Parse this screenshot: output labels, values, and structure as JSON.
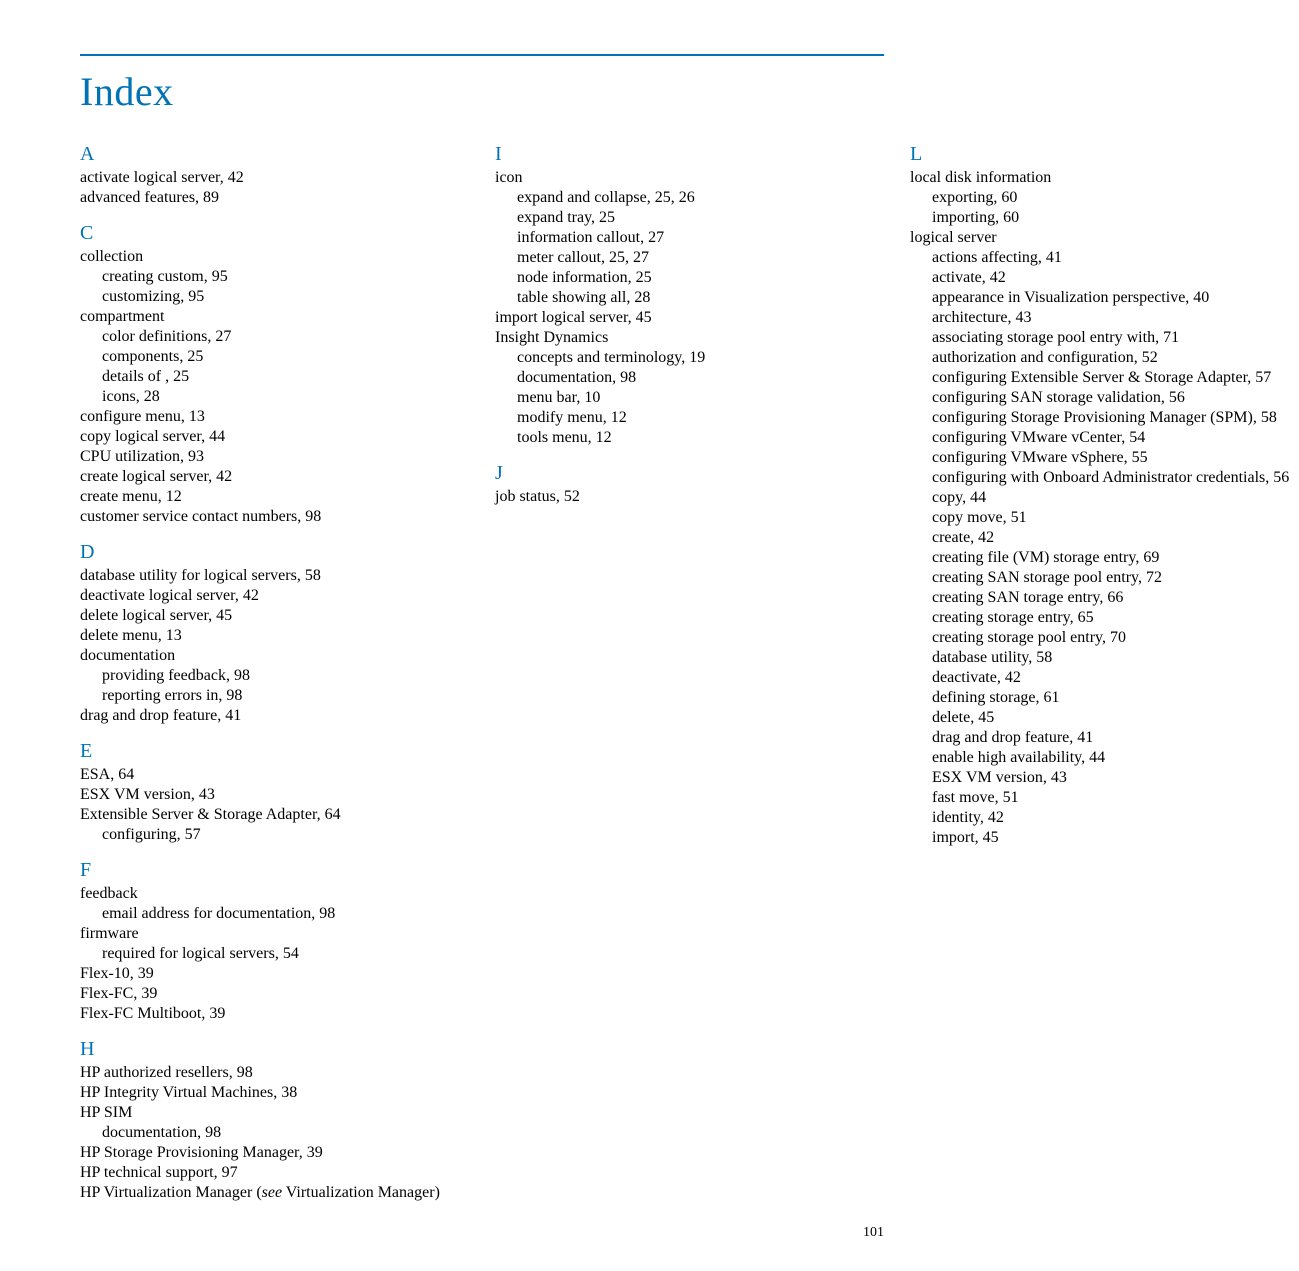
{
  "title": "Index",
  "pageNumber": "101",
  "sections": [
    {
      "letter": "A",
      "entries": [
        {
          "text": "activate logical server, 42",
          "sub": false
        },
        {
          "text": "advanced features, 89",
          "sub": false
        }
      ]
    },
    {
      "letter": "C",
      "entries": [
        {
          "text": "collection",
          "sub": false
        },
        {
          "text": "creating custom, 95",
          "sub": true
        },
        {
          "text": "customizing, 95",
          "sub": true
        },
        {
          "text": "compartment",
          "sub": false
        },
        {
          "text": "color definitions, 27",
          "sub": true
        },
        {
          "text": "components, 25",
          "sub": true
        },
        {
          "text": "details of , 25",
          "sub": true
        },
        {
          "text": "icons, 28",
          "sub": true
        },
        {
          "text": "configure menu, 13",
          "sub": false
        },
        {
          "text": "copy logical server, 44",
          "sub": false
        },
        {
          "text": "CPU utilization, 93",
          "sub": false
        },
        {
          "text": "create logical server, 42",
          "sub": false
        },
        {
          "text": "create menu, 12",
          "sub": false
        },
        {
          "text": "customer service contact numbers, 98",
          "sub": false
        }
      ]
    },
    {
      "letter": "D",
      "entries": [
        {
          "text": "database utility for logical servers, 58",
          "sub": false
        },
        {
          "text": "deactivate logical server, 42",
          "sub": false
        },
        {
          "text": "delete logical server, 45",
          "sub": false
        },
        {
          "text": "delete menu, 13",
          "sub": false
        },
        {
          "text": "documentation",
          "sub": false
        },
        {
          "text": "providing feedback, 98",
          "sub": true
        },
        {
          "text": "reporting errors in, 98",
          "sub": true
        },
        {
          "text": "drag and drop feature, 41",
          "sub": false
        }
      ]
    },
    {
      "letter": "E",
      "entries": [
        {
          "text": "ESA, 64",
          "sub": false
        },
        {
          "text": "ESX VM version, 43",
          "sub": false
        },
        {
          "text": "Extensible Server & Storage Adapter, 64",
          "sub": false
        },
        {
          "text": "configuring, 57",
          "sub": true
        }
      ]
    },
    {
      "letter": "F",
      "entries": [
        {
          "text": "feedback",
          "sub": false
        },
        {
          "text": "email address for documentation, 98",
          "sub": true
        },
        {
          "text": "firmware",
          "sub": false
        },
        {
          "text": "required for logical servers, 54",
          "sub": true
        },
        {
          "text": "Flex-10, 39",
          "sub": false
        },
        {
          "text": "Flex-FC, 39",
          "sub": false
        },
        {
          "text": "Flex-FC Multiboot, 39",
          "sub": false
        }
      ]
    },
    {
      "letter": "H",
      "entries": [
        {
          "text": "HP authorized resellers, 98",
          "sub": false
        },
        {
          "text": "HP Integrity Virtual Machines, 38",
          "sub": false
        },
        {
          "text": "HP SIM",
          "sub": false
        },
        {
          "text": "documentation, 98",
          "sub": true
        },
        {
          "text": "HP Storage Provisioning Manager, 39",
          "sub": false
        },
        {
          "text": "HP technical support, 97",
          "sub": false
        },
        {
          "text": "HP Virtualization Manager (see Virtualization Manager)",
          "sub": false,
          "italicSee": true
        }
      ]
    },
    {
      "letter": "I",
      "entries": [
        {
          "text": "icon",
          "sub": false
        },
        {
          "text": "expand and collapse, 25, 26",
          "sub": true
        },
        {
          "text": "expand tray, 25",
          "sub": true
        },
        {
          "text": "information callout, 27",
          "sub": true
        },
        {
          "text": "meter callout, 25, 27",
          "sub": true
        },
        {
          "text": "node information, 25",
          "sub": true
        },
        {
          "text": "table showing all, 28",
          "sub": true
        },
        {
          "text": "import logical server, 45",
          "sub": false
        },
        {
          "text": "Insight Dynamics",
          "sub": false
        },
        {
          "text": "concepts and terminology, 19",
          "sub": true
        },
        {
          "text": "documentation, 98",
          "sub": true
        },
        {
          "text": "menu bar, 10",
          "sub": true
        },
        {
          "text": "modify menu, 12",
          "sub": true
        },
        {
          "text": "tools menu, 12",
          "sub": true
        }
      ]
    },
    {
      "letter": "J",
      "entries": [
        {
          "text": "job status, 52",
          "sub": false
        }
      ]
    },
    {
      "letter": "L",
      "entries": [
        {
          "text": "local disk information",
          "sub": false
        },
        {
          "text": "exporting, 60",
          "sub": true
        },
        {
          "text": "importing, 60",
          "sub": true
        },
        {
          "text": "logical server",
          "sub": false
        },
        {
          "text": "actions affecting, 41",
          "sub": true
        },
        {
          "text": "activate, 42",
          "sub": true
        },
        {
          "text": "appearance in Visualization perspective, 40",
          "sub": true
        },
        {
          "text": "architecture, 43",
          "sub": true
        },
        {
          "text": "associating storage pool entry with, 71",
          "sub": true
        },
        {
          "text": "authorization and configuration, 52",
          "sub": true
        },
        {
          "text": "configuring Extensible Server & Storage Adapter, 57",
          "sub": true
        },
        {
          "text": "configuring SAN storage validation, 56",
          "sub": true
        },
        {
          "text": "configuring Storage Provisioning Manager (SPM), 58",
          "sub": true
        },
        {
          "text": "configuring VMware vCenter, 54",
          "sub": true
        },
        {
          "text": "configuring VMware vSphere, 55",
          "sub": true
        },
        {
          "text": "configuring with Onboard Administrator credentials, 56",
          "sub": true,
          "hang": true
        },
        {
          "text": "copy, 44",
          "sub": true
        },
        {
          "text": "copy move, 51",
          "sub": true
        },
        {
          "text": "create, 42",
          "sub": true
        },
        {
          "text": "creating file (VM) storage entry, 69",
          "sub": true
        },
        {
          "text": "creating SAN storage pool entry, 72",
          "sub": true
        },
        {
          "text": "creating SAN torage entry, 66",
          "sub": true
        },
        {
          "text": "creating storage entry, 65",
          "sub": true
        },
        {
          "text": "creating storage pool entry, 70",
          "sub": true
        },
        {
          "text": "database utility, 58",
          "sub": true
        },
        {
          "text": "deactivate, 42",
          "sub": true
        },
        {
          "text": "defining storage, 61",
          "sub": true
        },
        {
          "text": "delete, 45",
          "sub": true
        },
        {
          "text": "drag and drop feature, 41",
          "sub": true
        },
        {
          "text": "enable high availability, 44",
          "sub": true
        },
        {
          "text": "ESX VM version, 43",
          "sub": true
        },
        {
          "text": "fast move, 51",
          "sub": true
        },
        {
          "text": "identity, 42",
          "sub": true
        },
        {
          "text": "import, 45",
          "sub": true
        }
      ]
    }
  ]
}
